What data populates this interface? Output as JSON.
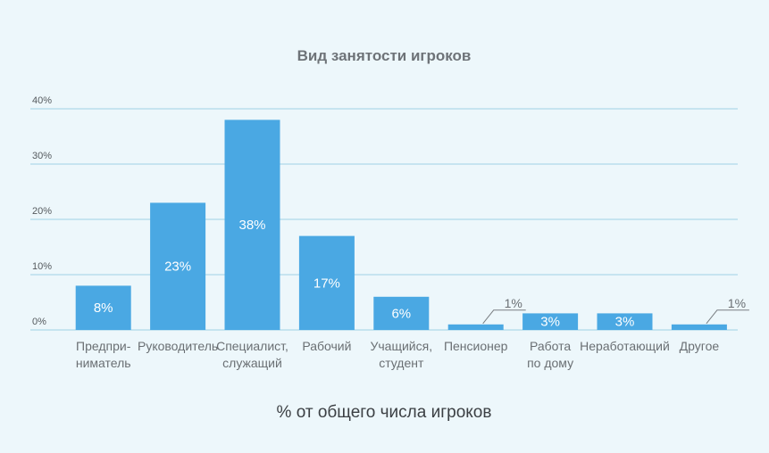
{
  "chart_data": {
    "type": "bar",
    "title": "Вид занятости игроков",
    "xlabel": "% от общего числа игроков",
    "ylabel": "",
    "ylim": [
      0,
      40
    ],
    "yticks": [
      "0%",
      "10%",
      "20%",
      "30%",
      "40%"
    ],
    "grid": true,
    "categories": [
      [
        "Предпри-",
        "ниматель"
      ],
      [
        "Руководитель"
      ],
      [
        "Специалист,",
        "служащий"
      ],
      [
        "Рабочий"
      ],
      [
        "Учащийся,",
        "студент"
      ],
      [
        "Пенсионер"
      ],
      [
        "Работа",
        "по дому"
      ],
      [
        "Неработающий"
      ],
      [
        "Другое"
      ]
    ],
    "values": [
      8,
      23,
      38,
      17,
      6,
      1,
      3,
      3,
      1
    ],
    "data_labels": [
      "8%",
      "23%",
      "38%",
      "17%",
      "6%",
      "1%",
      "3%",
      "3%",
      "1%"
    ],
    "colors": {
      "bar": "#4aa8e3",
      "grid": "#9ed0e6",
      "callout": "#7a7f83",
      "background": "#edf7fb"
    }
  }
}
